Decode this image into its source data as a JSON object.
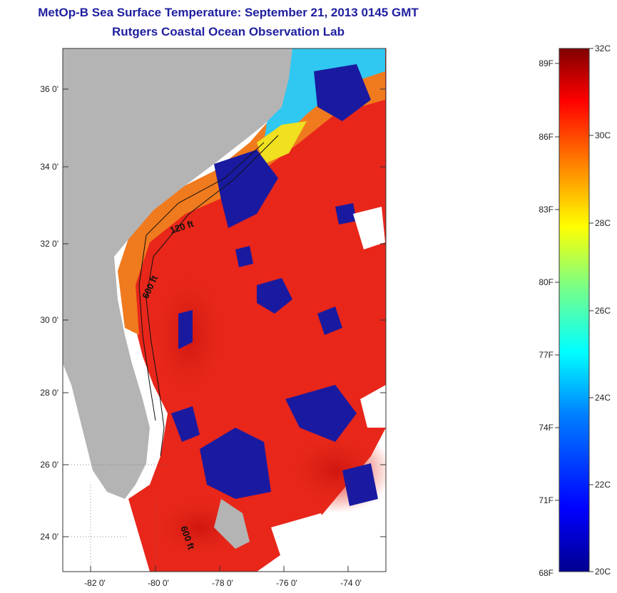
{
  "title": {
    "line1": "MetOp-B Sea Surface Temperature:  September 21, 2013 0145 GMT",
    "line2": "Rutgers Coastal Ocean Observation Lab"
  },
  "map": {
    "lon_labels": [
      "-82 0'",
      "-80 0'",
      "-78 0'",
      "-76 0'",
      "-74 0'"
    ],
    "lat_labels": [
      "36 0'",
      "34 0'",
      "32 0'",
      "30 0'",
      "28 0'",
      "26 0'",
      "24 0'"
    ],
    "contour_labels": [
      "120 ft",
      "600 ft",
      "600 ft"
    ],
    "colors": {
      "land": "#b4b4b4",
      "cloud": "#1a1aa0",
      "warm": "#e8261a",
      "hot": "#c81010",
      "cool": "#f07a1e"
    }
  },
  "colorbar": {
    "fahrenheit_labels": [
      "89F",
      "86F",
      "83F",
      "80F",
      "77F",
      "74F",
      "71F",
      "68F"
    ],
    "celsius_labels": [
      "32C",
      "30C",
      "28C",
      "26C",
      "24C",
      "22C",
      "20C"
    ],
    "range_c": [
      20,
      32
    ]
  }
}
